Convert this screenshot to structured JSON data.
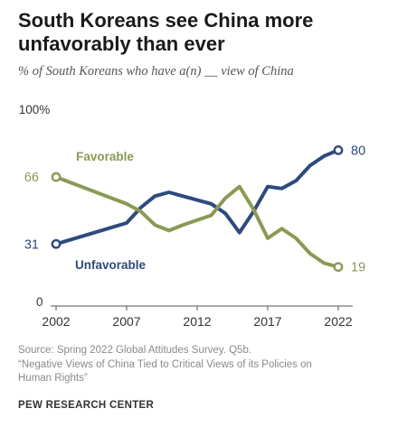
{
  "header": {
    "title": "South Koreans see China more unfavorably than ever",
    "subtitle": "% of South Koreans who have a(n) __ view of China"
  },
  "chart_data": {
    "type": "line",
    "title": "South Koreans see China more unfavorably than ever",
    "subtitle": "% of South Koreans who have a(n) __ view of China",
    "xlabel": "",
    "ylabel": "",
    "xlim": [
      2002,
      2022
    ],
    "ylim": [
      0,
      100
    ],
    "x_ticks": [
      "2002",
      "2007",
      "2012",
      "2017",
      "2022"
    ],
    "y_top_label": "100%",
    "y_bottom_label": "0",
    "grid": false,
    "legend": "inline labels",
    "series": [
      {
        "name": "Unfavorable",
        "color": "#2e4a7d",
        "x": [
          2002,
          2007,
          2008,
          2009,
          2010,
          2011,
          2013,
          2014,
          2015,
          2016,
          2017,
          2018,
          2019,
          2020,
          2021,
          2022
        ],
        "values": [
          31,
          42,
          50,
          56,
          58,
          56,
          52,
          47,
          37,
          48,
          61,
          60,
          64,
          72,
          77,
          80
        ],
        "start_label": "31",
        "end_label": "80"
      },
      {
        "name": "Favorable",
        "color": "#8a9a55",
        "x": [
          2002,
          2007,
          2008,
          2009,
          2010,
          2011,
          2013,
          2014,
          2015,
          2016,
          2017,
          2018,
          2019,
          2020,
          2021,
          2022
        ],
        "values": [
          66,
          52,
          48,
          41,
          38,
          41,
          46,
          55,
          61,
          49,
          34,
          39,
          34,
          26,
          21,
          19
        ],
        "start_label": "66",
        "end_label": "19"
      }
    ]
  },
  "footer": {
    "source_line1": "Source: Spring 2022 Global Attitudes Survey. Q5b.",
    "source_line2": "“Negative Views of China Tied to Critical Views of its Policies on",
    "source_line3": "Human Rights”",
    "brand": "PEW RESEARCH CENTER"
  }
}
